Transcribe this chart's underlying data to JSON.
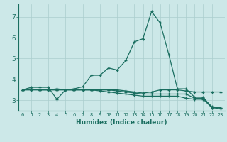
{
  "xlabel": "Humidex (Indice chaleur)",
  "bg_color": "#cce8e8",
  "grid_color": "#aacece",
  "line_color": "#1a6e60",
  "xlim": [
    -0.5,
    23.5
  ],
  "ylim": [
    2.5,
    7.6
  ],
  "yticks": [
    3,
    4,
    5,
    6,
    7
  ],
  "xticks": [
    0,
    1,
    2,
    3,
    4,
    5,
    6,
    7,
    8,
    9,
    10,
    11,
    12,
    13,
    14,
    15,
    16,
    17,
    18,
    19,
    20,
    21,
    22,
    23
  ],
  "line1_x": [
    0,
    1,
    2,
    3,
    4,
    5,
    6,
    7,
    8,
    9,
    10,
    11,
    12,
    13,
    14,
    15,
    16,
    17,
    18,
    19,
    20,
    21,
    22,
    23
  ],
  "line1_y": [
    3.5,
    3.62,
    3.62,
    3.62,
    3.05,
    3.5,
    3.55,
    3.65,
    4.2,
    4.2,
    4.55,
    4.45,
    4.9,
    5.8,
    5.95,
    7.25,
    6.7,
    5.2,
    3.55,
    3.55,
    3.15,
    3.15,
    2.65,
    2.65
  ],
  "line2_x": [
    0,
    1,
    2,
    3,
    4,
    5,
    6,
    7,
    8,
    9,
    10,
    11,
    12,
    13,
    14,
    15,
    16,
    17,
    18,
    19,
    20,
    21,
    22,
    23
  ],
  "line2_y": [
    3.5,
    3.55,
    3.5,
    3.5,
    3.55,
    3.5,
    3.5,
    3.5,
    3.5,
    3.5,
    3.5,
    3.45,
    3.4,
    3.35,
    3.3,
    3.3,
    3.3,
    3.3,
    3.3,
    3.3,
    3.1,
    3.1,
    2.7,
    2.65
  ],
  "line3_x": [
    0,
    1,
    2,
    3,
    4,
    5,
    6,
    7,
    8,
    9,
    10,
    11,
    12,
    13,
    14,
    15,
    16,
    17,
    18,
    19,
    20,
    21,
    22,
    23
  ],
  "line3_y": [
    3.5,
    3.5,
    3.5,
    3.5,
    3.5,
    3.5,
    3.5,
    3.5,
    3.5,
    3.45,
    3.4,
    3.35,
    3.3,
    3.25,
    3.2,
    3.2,
    3.2,
    3.2,
    3.2,
    3.1,
    3.05,
    3.05,
    2.65,
    2.6
  ],
  "line4_x": [
    0,
    1,
    2,
    3,
    4,
    5,
    6,
    7,
    8,
    9,
    10,
    11,
    12,
    13,
    14,
    15,
    16,
    17,
    18,
    19,
    20,
    21,
    22,
    23
  ],
  "line4_y": [
    3.5,
    3.5,
    3.5,
    3.5,
    3.5,
    3.5,
    3.5,
    3.5,
    3.5,
    3.5,
    3.5,
    3.5,
    3.45,
    3.4,
    3.35,
    3.4,
    3.5,
    3.5,
    3.5,
    3.45,
    3.4,
    3.4,
    3.4,
    3.4
  ]
}
